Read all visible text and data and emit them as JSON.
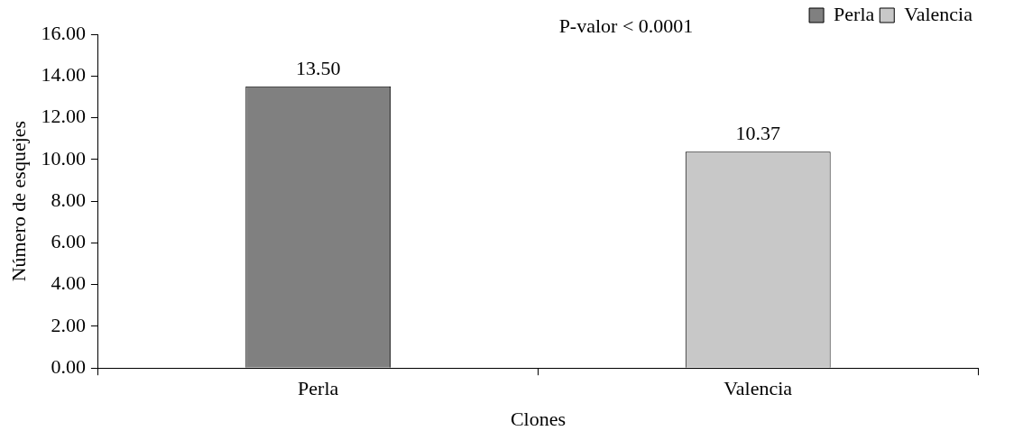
{
  "chart_data": {
    "type": "bar",
    "xlabel": "Clones",
    "ylabel": "Número de esquejes",
    "categories": [
      "Perla",
      "Valencia"
    ],
    "series": [
      {
        "name": "Perla",
        "color": "#808080",
        "values": [
          13.5,
          null
        ],
        "value_labels": [
          "13.50",
          null
        ]
      },
      {
        "name": "Valencia",
        "color": "#c8c8c8",
        "values": [
          null,
          10.37
        ],
        "value_labels": [
          null,
          "10.37"
        ]
      }
    ],
    "ylim": [
      0,
      16
    ],
    "yticks": [
      {
        "value": 0,
        "label": "0.00"
      },
      {
        "value": 2,
        "label": "2.00"
      },
      {
        "value": 4,
        "label": "4.00"
      },
      {
        "value": 6,
        "label": "6.00"
      },
      {
        "value": 8,
        "label": "8.00"
      },
      {
        "value": 10,
        "label": "10.00"
      },
      {
        "value": 12,
        "label": "12.00"
      },
      {
        "value": 14,
        "label": "14.00"
      },
      {
        "value": 16,
        "label": "16.00"
      }
    ],
    "annotations": [
      "P-valor < 0.0001"
    ],
    "legend": "top right",
    "grid": false
  }
}
